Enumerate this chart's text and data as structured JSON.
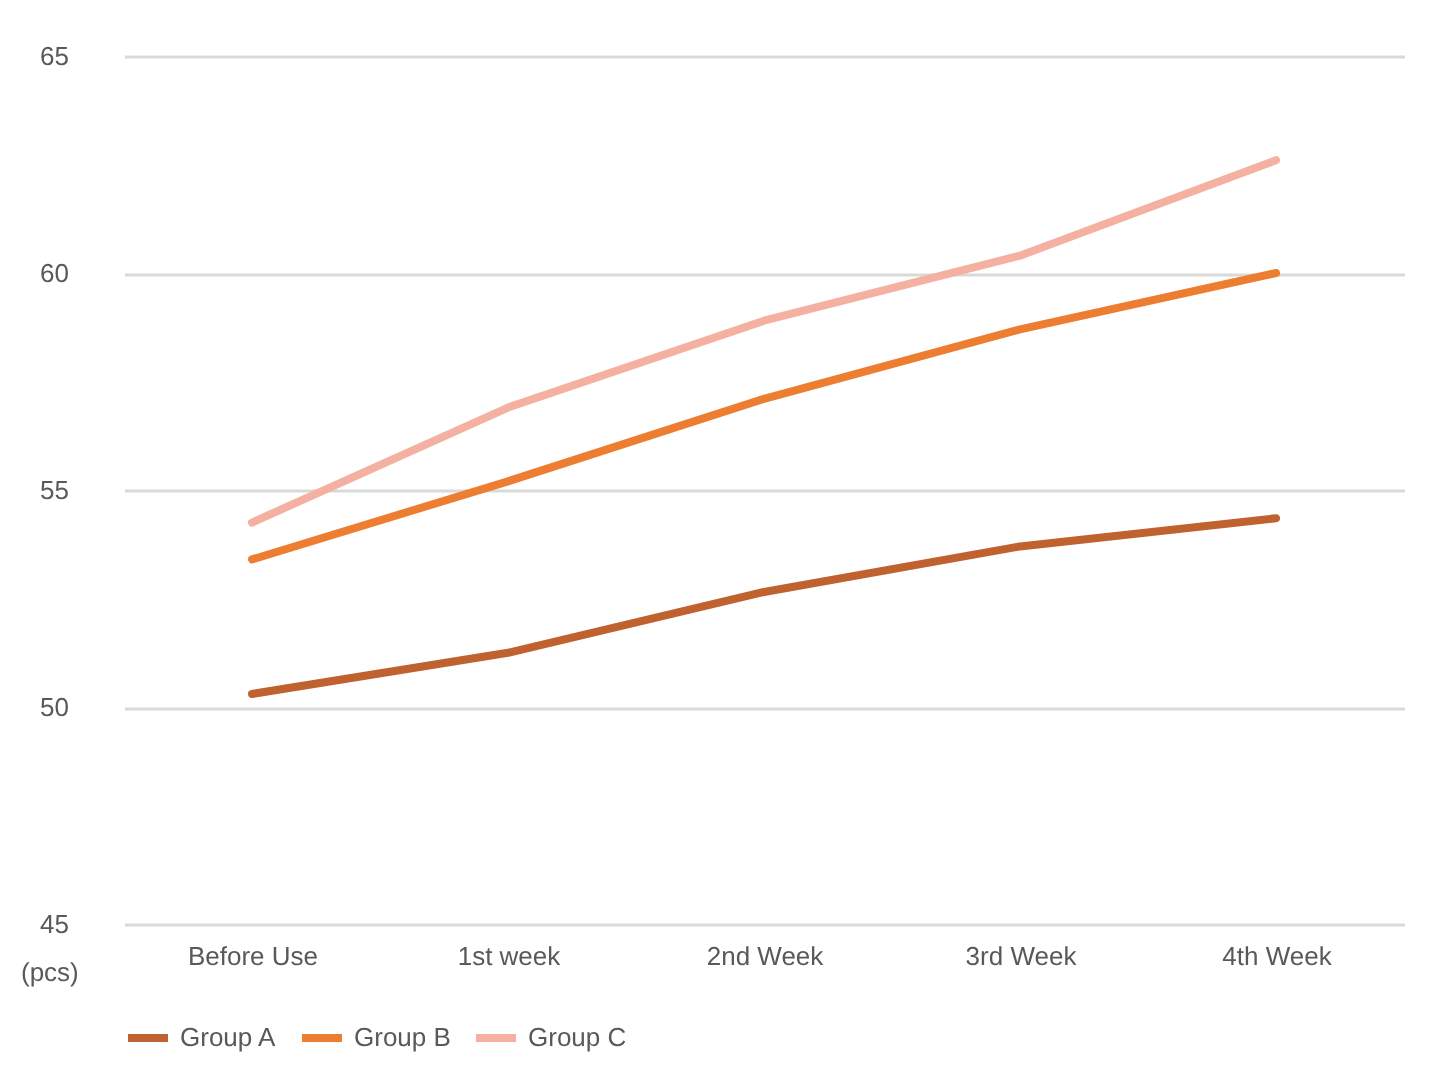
{
  "chart_data": {
    "type": "line",
    "ylabel": "(pcs)",
    "categories": [
      "Before Use",
      "1st week",
      "2nd Week",
      "3rd Week",
      "4th Week"
    ],
    "series": [
      {
        "name": "Group A",
        "color": "#c0622f",
        "values": [
          50.3,
          51.25,
          52.65,
          53.7,
          54.35
        ]
      },
      {
        "name": "Group B",
        "color": "#ed7d31",
        "values": [
          53.4,
          55.2,
          57.1,
          58.7,
          60.0
        ]
      },
      {
        "name": "Group C",
        "color": "#f4b0a0",
        "values": [
          54.25,
          56.9,
          58.9,
          60.4,
          62.6
        ]
      }
    ],
    "ylim": [
      45,
      65
    ],
    "yticks": [
      45,
      50,
      55,
      60,
      65
    ],
    "grid": "y",
    "legend": "bottom",
    "marker": "none",
    "line_style": "solid"
  }
}
